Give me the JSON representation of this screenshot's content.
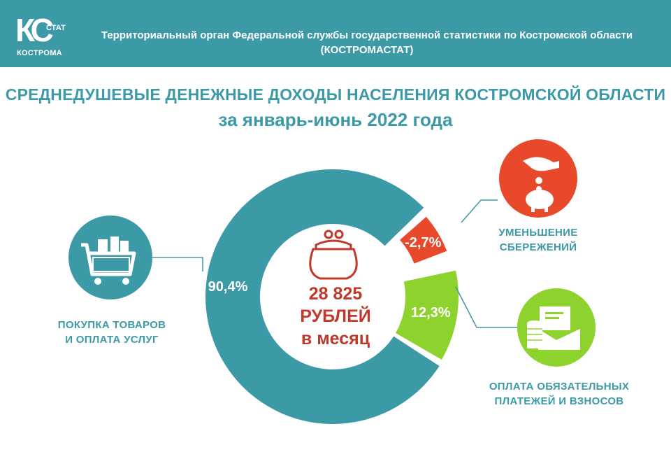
{
  "header": {
    "logo_text": "КС",
    "logo_stat": "СТАТ",
    "logo_city": "КОСТРОМА",
    "org_line1": "Территориальный орган Федеральной службы государственной статистики по Костромской области",
    "org_line2": "(КОСТРОМАСТАТ)"
  },
  "title_line1": "СРЕДНЕДУШЕВЫЕ ДЕНЕЖНЫЕ ДОХОДЫ НАСЕЛЕНИЯ КОСТРОМСКОЙ ОБЛАСТИ",
  "title_line2": "за январь-июнь 2022 года",
  "center": {
    "amount": "28 825",
    "unit": "РУБЛЕЙ",
    "period": "в месяц"
  },
  "labels": {
    "purchases_line1": "ПОКУПКА ТОВАРОВ",
    "purchases_line2": "И ОПЛАТА УСЛУГ",
    "savings_line1": "УМЕНЬШЕНИЕ",
    "savings_line2": "СБЕРЕЖЕНИЙ",
    "payments_line1": "ОПЛАТА ОБЯЗАТЕЛЬНЫХ",
    "payments_line2": "ПЛАТЕЖЕЙ И ВЗНОСОВ"
  },
  "colors": {
    "teal": "#3c9aa7",
    "red": "#e8492b",
    "green": "#8ed22e",
    "dark_red": "#c0392b"
  },
  "chart_data": {
    "type": "pie",
    "categories": [
      "ПОКУПКА ТОВАРОВ И ОПЛАТА УСЛУГ",
      "УМЕНЬШЕНИЕ СБЕРЕЖЕНИЙ",
      "ОПЛАТА ОБЯЗАТЕЛЬНЫХ ПЛАТЕЖЕЙ И ВЗНОСОВ"
    ],
    "values": [
      90.4,
      -2.7,
      12.3
    ],
    "value_labels": [
      "90,4%",
      "-2,7%",
      "12,3%"
    ],
    "colors": [
      "#3c9aa7",
      "#e8492b",
      "#8ed22e"
    ]
  }
}
